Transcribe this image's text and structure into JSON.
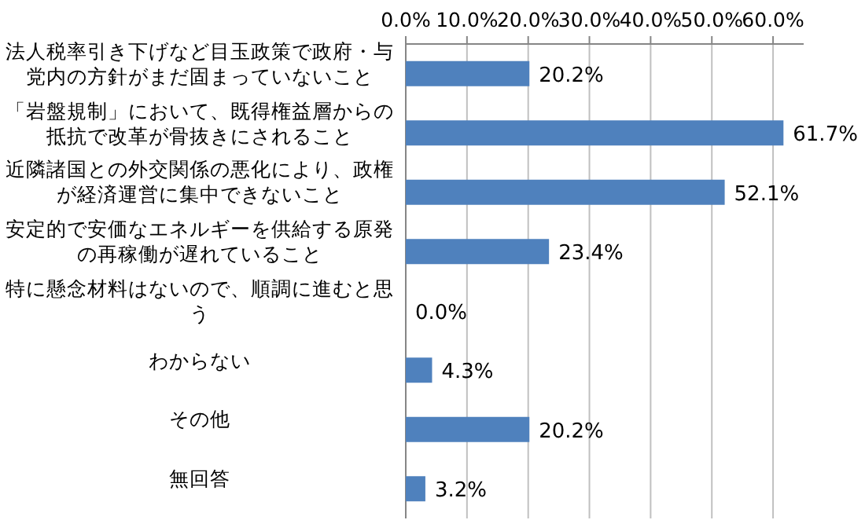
{
  "chart_data": {
    "type": "bar",
    "orientation": "horizontal",
    "categories": [
      "法人税率引き下げなど目玉政策で政府・与党内の方針がまだ固まっていないこと",
      "「岩盤規制」において、既得権益層からの抵抗で改革が骨抜きにされること",
      "近隣諸国との外交関係の悪化により、政権が経済運営に集中できないこと",
      "安定的で安価なエネルギーを供給する原発の再稼働が遅れていること",
      "特に懸念材料はないので、順調に進むと思う",
      "わからない",
      "その他",
      "無回答"
    ],
    "values": [
      20.2,
      61.7,
      52.1,
      23.4,
      0.0,
      4.3,
      20.2,
      3.2
    ],
    "value_labels": [
      "20.2%",
      "61.7%",
      "52.1%",
      "23.4%",
      "0.0%",
      "4.3%",
      "20.2%",
      "3.2%"
    ],
    "color": "#4f81bd",
    "xlim": [
      0,
      65
    ],
    "xticks": [
      {
        "value": 0,
        "label": "0.0%"
      },
      {
        "value": 10,
        "label": "10.0%"
      },
      {
        "value": 20,
        "label": "20.0%"
      },
      {
        "value": 30,
        "label": "30.0%"
      },
      {
        "value": 40,
        "label": "40.0%"
      },
      {
        "value": 50,
        "label": "50.0%"
      },
      {
        "value": 60,
        "label": "60.0%"
      }
    ],
    "grid": "x"
  }
}
